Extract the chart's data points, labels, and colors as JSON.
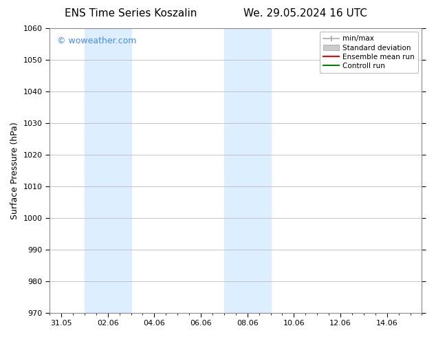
{
  "title_left": "ENS Time Series Koszalin",
  "title_right": "We. 29.05.2024 16 UTC",
  "ylabel": "Surface Pressure (hPa)",
  "ylim": [
    970,
    1060
  ],
  "yticks": [
    970,
    980,
    990,
    1000,
    1010,
    1020,
    1030,
    1040,
    1050,
    1060
  ],
  "xtick_labels": [
    "31.05",
    "02.06",
    "04.06",
    "06.06",
    "08.06",
    "10.06",
    "12.06",
    "14.06"
  ],
  "xtick_positions": [
    0,
    2,
    4,
    6,
    8,
    10,
    12,
    14
  ],
  "xlim_start": -0.5,
  "xlim_end": 15.5,
  "shaded_bands": [
    {
      "x_start": 1.0,
      "x_end": 3.0
    },
    {
      "x_start": 7.0,
      "x_end": 9.0
    }
  ],
  "shaded_color": "#ddeeff",
  "watermark_text": "© woweather.com",
  "watermark_color": "#4488ff",
  "legend_entries": [
    {
      "label": "min/max",
      "color": "#aaaaaa"
    },
    {
      "label": "Standard deviation",
      "color": "#cccccc"
    },
    {
      "label": "Ensemble mean run",
      "color": "#ff0000"
    },
    {
      "label": "Controll run",
      "color": "#008000"
    }
  ],
  "bg_color": "#ffffff",
  "grid_color": "#bbbbbb",
  "title_fontsize": 11,
  "tick_fontsize": 8,
  "ylabel_fontsize": 9
}
